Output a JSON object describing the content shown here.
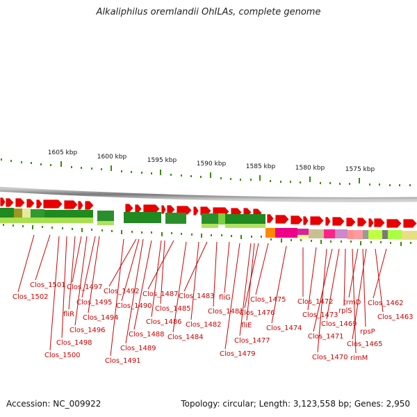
{
  "title": "Alkaliphilus oremlandii OhILAs, complete genome",
  "footer": {
    "accession": "Accession: NC_009922",
    "topology": "Topology: circular; Length: 3,123,558 bp; Genes: 2,950"
  },
  "scale_labels": [
    "1605 kbp",
    "1600 kbp",
    "1595 kbp",
    "1590 kbp",
    "1585 kbp",
    "1580 kbp",
    "1575 kbp"
  ],
  "gene_labels": [
    "Clos_1501",
    "Clos_1502",
    "Clos_1497",
    "Clos_1495",
    "fliR",
    "Clos_1494",
    "Clos_1496",
    "Clos_1498",
    "Clos_1500",
    "Clos_1492",
    "Clos_1490",
    "Clos_1489",
    "Clos_1491",
    "Clos_1487",
    "Clos_1485",
    "Clos_1486",
    "Clos_1488",
    "Clos_1484",
    "Clos_1483",
    "Clos_1482",
    "fliG",
    "Clos_1481",
    "Clos_1475",
    "Clos_1476",
    "fliE",
    "Clos_1477",
    "Clos_1479",
    "Clos_1474",
    "Clos_1472",
    "Clos_1473",
    "trmD",
    "rplS",
    "Clos_1462",
    "Clos_1469",
    "Clos_1463",
    "Clos_1471",
    "rpsP",
    "Clos_1465",
    "Clos_1470",
    "rimM"
  ],
  "colors": {
    "forward_gene": "#e80000",
    "label_line": "#cc0000",
    "label_text": "#cc0000",
    "scale_tick": "#3a8a00",
    "backbone": "#8a8a8a"
  }
}
